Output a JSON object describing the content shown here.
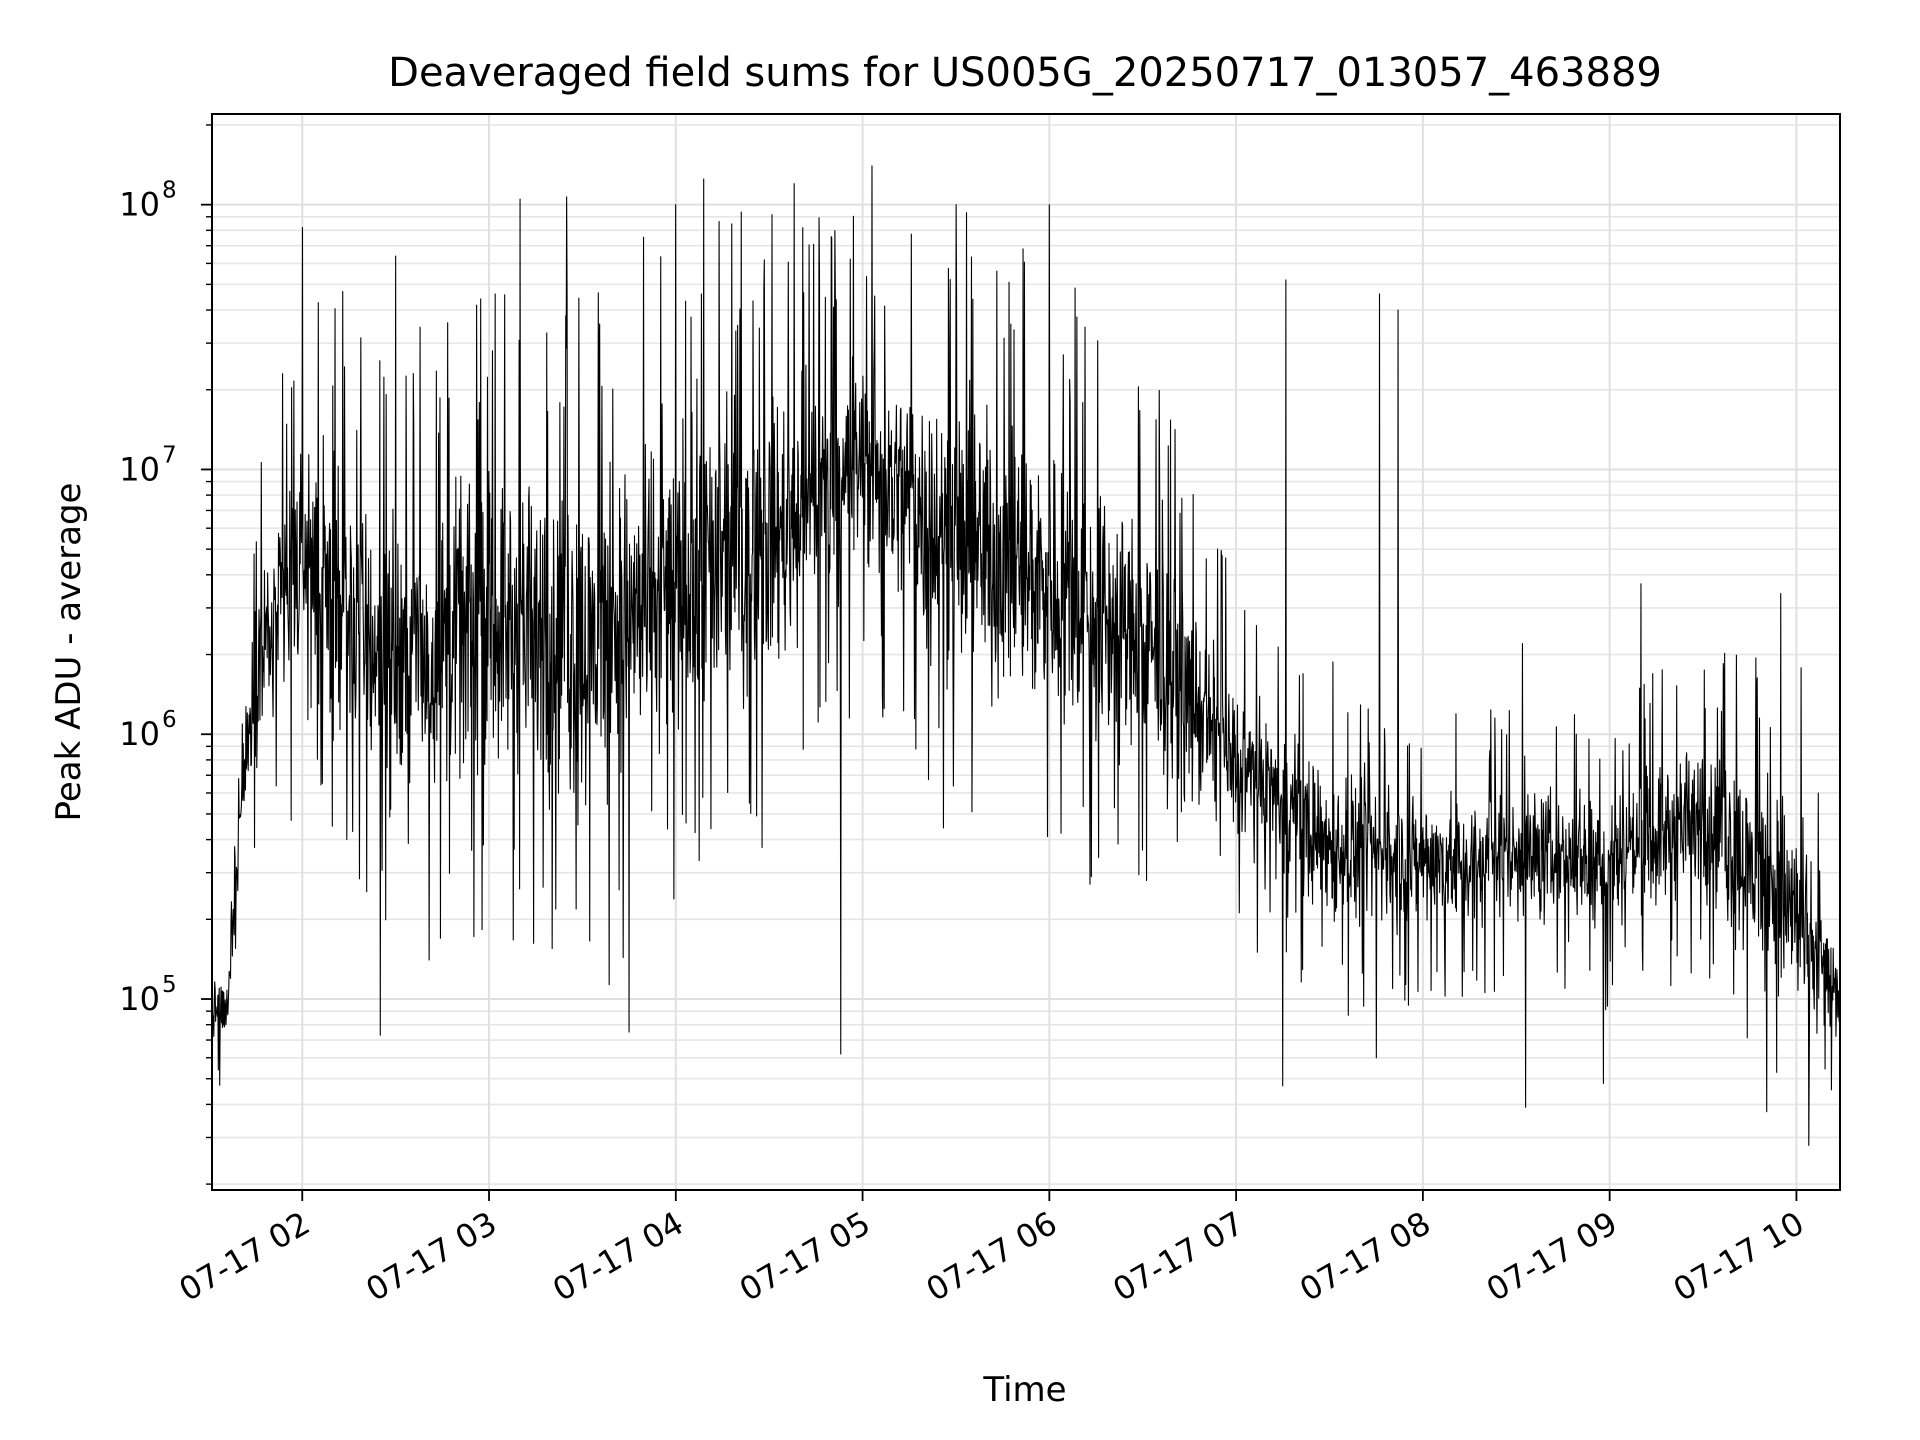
{
  "chart_data": {
    "type": "line",
    "title": "Deaveraged field sums for US005G_20250717_013057_463889",
    "xlabel": "Time",
    "ylabel": "Peak ADU - average",
    "y_scale": "log",
    "ylim": [
      19000,
      220000000
    ],
    "xlim": [
      "2025-07-17T01:31",
      "2025-07-17T10:14"
    ],
    "grid": true,
    "grid_minor": true,
    "line_color": "#000000",
    "x_ticks": [
      {
        "t": "2025-07-17T02:00",
        "label": "07-17 02"
      },
      {
        "t": "2025-07-17T03:00",
        "label": "07-17 03"
      },
      {
        "t": "2025-07-17T04:00",
        "label": "07-17 04"
      },
      {
        "t": "2025-07-17T05:00",
        "label": "07-17 05"
      },
      {
        "t": "2025-07-17T06:00",
        "label": "07-17 06"
      },
      {
        "t": "2025-07-17T07:00",
        "label": "07-17 07"
      },
      {
        "t": "2025-07-17T08:00",
        "label": "07-17 08"
      },
      {
        "t": "2025-07-17T09:00",
        "label": "07-17 09"
      },
      {
        "t": "2025-07-17T10:00",
        "label": "07-17 10"
      }
    ],
    "y_ticks": [
      {
        "value": 100000,
        "base": "10",
        "exp": "5"
      },
      {
        "value": 1000000,
        "base": "10",
        "exp": "6"
      },
      {
        "value": 10000000,
        "base": "10",
        "exp": "7"
      },
      {
        "value": 100000000,
        "base": "10",
        "exp": "8"
      }
    ],
    "series_envelope": [
      {
        "t": "2025-07-17T01:31",
        "lo": 60000,
        "hi": 140000
      },
      {
        "t": "2025-07-17T01:36",
        "lo": 60000,
        "hi": 130000
      },
      {
        "t": "2025-07-17T01:40",
        "lo": 300000,
        "hi": 800000
      },
      {
        "t": "2025-07-17T01:45",
        "lo": 600000,
        "hi": 5000000
      },
      {
        "t": "2025-07-17T02:00",
        "lo": 1000000,
        "hi": 20000000
      },
      {
        "t": "2025-07-17T02:30",
        "lo": 300000,
        "hi": 10000000
      },
      {
        "t": "2025-07-17T03:00",
        "lo": 500000,
        "hi": 15000000
      },
      {
        "t": "2025-07-17T03:30",
        "lo": 300000,
        "hi": 15000000
      },
      {
        "t": "2025-07-17T04:00",
        "lo": 500000,
        "hi": 25000000
      },
      {
        "t": "2025-07-17T04:30",
        "lo": 1000000,
        "hi": 30000000
      },
      {
        "t": "2025-07-17T05:00",
        "lo": 3000000,
        "hi": 40000000
      },
      {
        "t": "2025-07-17T05:30",
        "lo": 1000000,
        "hi": 30000000
      },
      {
        "t": "2025-07-17T06:00",
        "lo": 700000,
        "hi": 20000000
      },
      {
        "t": "2025-07-17T06:30",
        "lo": 500000,
        "hi": 10000000
      },
      {
        "t": "2025-07-17T07:00",
        "lo": 300000,
        "hi": 2000000
      },
      {
        "t": "2025-07-17T07:30",
        "lo": 150000,
        "hi": 1000000
      },
      {
        "t": "2025-07-17T08:00",
        "lo": 150000,
        "hi": 700000
      },
      {
        "t": "2025-07-17T08:30",
        "lo": 150000,
        "hi": 800000
      },
      {
        "t": "2025-07-17T09:00",
        "lo": 150000,
        "hi": 800000
      },
      {
        "t": "2025-07-17T09:30",
        "lo": 200000,
        "hi": 1200000
      },
      {
        "t": "2025-07-17T10:00",
        "lo": 50000,
        "hi": 900000
      },
      {
        "t": "2025-07-17T10:14",
        "lo": 60000,
        "hi": 150000
      }
    ],
    "spikes": [
      {
        "t": "2025-07-17T02:00",
        "value": 82000000
      },
      {
        "t": "2025-07-17T02:13",
        "value": 47000000
      },
      {
        "t": "2025-07-17T02:30",
        "value": 64000000
      },
      {
        "t": "2025-07-17T03:10",
        "value": 105000000
      },
      {
        "t": "2025-07-17T03:25",
        "value": 107000000
      },
      {
        "t": "2025-07-17T04:00",
        "value": 100000000
      },
      {
        "t": "2025-07-17T04:09",
        "value": 125000000
      },
      {
        "t": "2025-07-17T04:38",
        "value": 120000000
      },
      {
        "t": "2025-07-17T05:03",
        "value": 140000000
      },
      {
        "t": "2025-07-17T05:30",
        "value": 100000000
      },
      {
        "t": "2025-07-17T06:00",
        "value": 100000000
      },
      {
        "t": "2025-07-17T07:16",
        "value": 52000000
      },
      {
        "t": "2025-07-17T07:46",
        "value": 46000000
      },
      {
        "t": "2025-07-17T07:52",
        "value": 40000000
      },
      {
        "t": "2025-07-17T08:32",
        "value": 2200000
      },
      {
        "t": "2025-07-17T09:10",
        "value": 3700000
      },
      {
        "t": "2025-07-17T09:55",
        "value": 3400000
      }
    ],
    "dips": [
      {
        "t": "2025-07-17T02:25",
        "value": 73000
      },
      {
        "t": "2025-07-17T03:45",
        "value": 75000
      },
      {
        "t": "2025-07-17T04:53",
        "value": 62000
      },
      {
        "t": "2025-07-17T07:15",
        "value": 47000
      },
      {
        "t": "2025-07-17T07:45",
        "value": 60000
      },
      {
        "t": "2025-07-17T08:33",
        "value": 39000
      },
      {
        "t": "2025-07-17T08:58",
        "value": 48000
      },
      {
        "t": "2025-07-17T10:04",
        "value": 28000
      }
    ]
  }
}
